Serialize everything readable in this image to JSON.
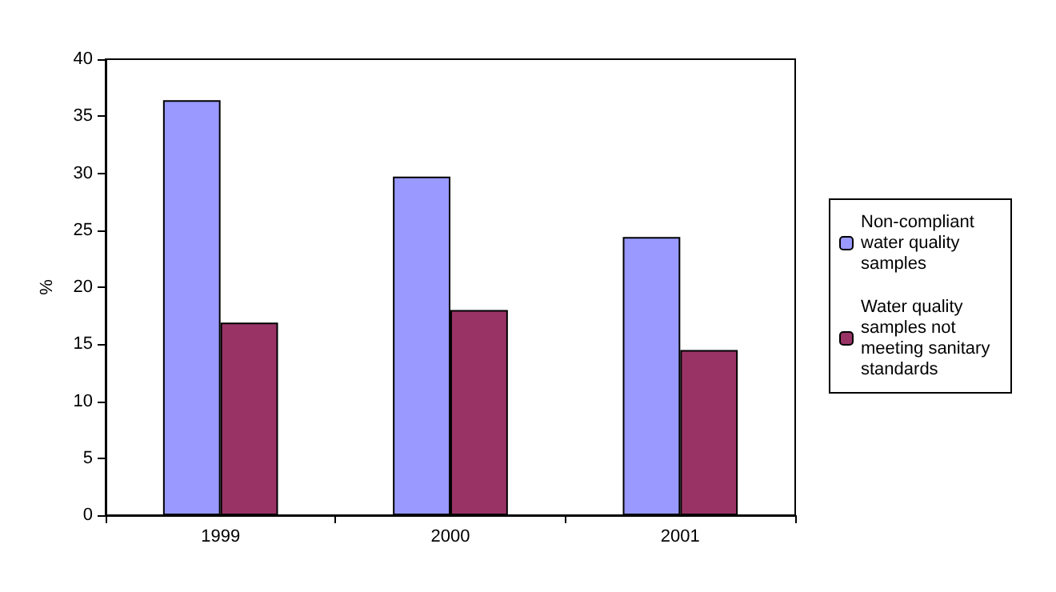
{
  "chart_data": {
    "type": "bar",
    "ylabel": "%",
    "categories": [
      "1999",
      "2000",
      "2001"
    ],
    "series": [
      {
        "name": "Non-compliant water quality samples",
        "color": "#9999ff",
        "values": [
          36.4,
          29.7,
          24.4
        ]
      },
      {
        "name": "Water quality samples not meeting sanitary standards",
        "color": "#993366",
        "values": [
          16.9,
          18.0,
          14.5
        ]
      }
    ],
    "ylim": [
      0,
      40
    ],
    "yticks": [
      0,
      5,
      10,
      15,
      20,
      25,
      30,
      35,
      40
    ],
    "grid": false,
    "legend": "right"
  }
}
